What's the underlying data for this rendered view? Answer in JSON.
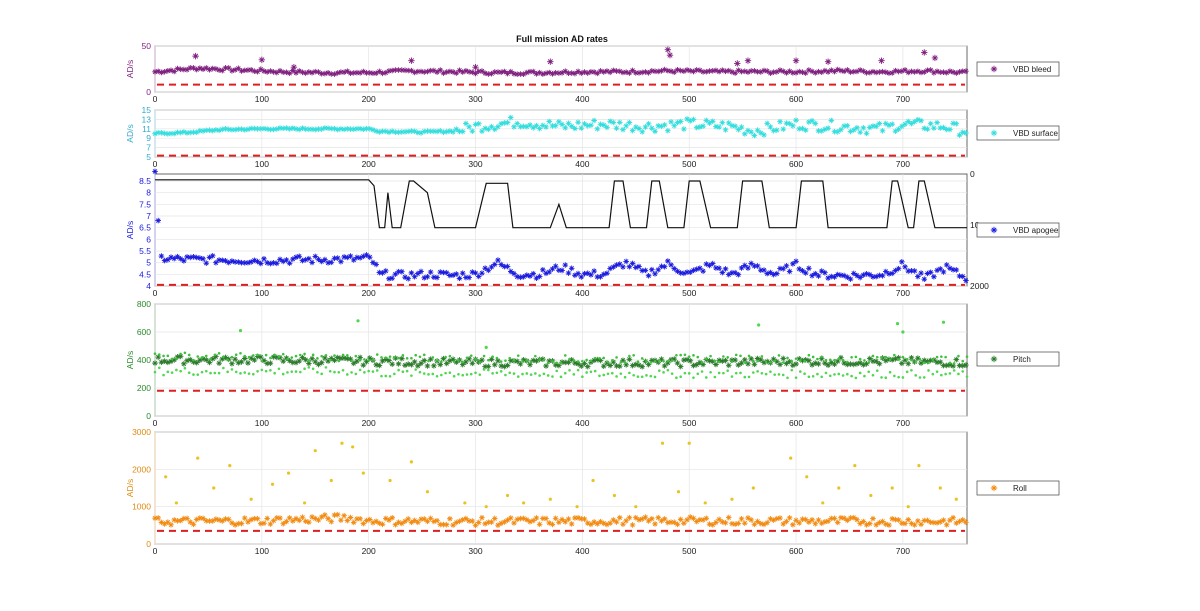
{
  "figure": {
    "title": "Full mission AD rates"
  },
  "chart_data": [
    {
      "type": "scatter",
      "title": "Full mission AD rates",
      "xlabel": "",
      "ylabel": "AD/s",
      "xlim": [
        0,
        760
      ],
      "ylim": [
        0,
        50
      ],
      "yticks": [
        0,
        50
      ],
      "xticks": [
        0,
        100,
        200,
        300,
        400,
        500,
        600,
        700
      ],
      "grid": true,
      "legend": {
        "position": "right",
        "entries": [
          "VBD bleed"
        ]
      },
      "threshold": 8,
      "series": [
        {
          "name": "VBD bleed",
          "color": "#7e1e7e",
          "marker": "asterisk",
          "x": [
            0,
            40,
            80,
            120,
            160,
            200,
            240,
            280,
            320,
            360,
            400,
            440,
            480,
            520,
            560,
            600,
            640,
            680,
            720,
            760
          ],
          "values": [
            22,
            26,
            24,
            22,
            21,
            21,
            23,
            22,
            21,
            21,
            22,
            22,
            23,
            22,
            22,
            22,
            23,
            22,
            23,
            21
          ],
          "outliers": [
            [
              38,
              39
            ],
            [
              100,
              35
            ],
            [
              130,
              27
            ],
            [
              240,
              34
            ],
            [
              300,
              27
            ],
            [
              370,
              33
            ],
            [
              480,
              46
            ],
            [
              482,
              40
            ],
            [
              545,
              31
            ],
            [
              555,
              34
            ],
            [
              600,
              34
            ],
            [
              630,
              33
            ],
            [
              680,
              34
            ],
            [
              720,
              43
            ],
            [
              730,
              37
            ]
          ]
        }
      ]
    },
    {
      "type": "scatter",
      "ylabel": "AD/s",
      "xlim": [
        0,
        760
      ],
      "ylim": [
        5,
        15
      ],
      "yticks": [
        5,
        7,
        9,
        11,
        13,
        15
      ],
      "xticks": [
        0,
        100,
        200,
        300,
        400,
        500,
        600,
        700
      ],
      "grid": true,
      "legend": {
        "position": "right",
        "entries": [
          "VBD surface"
        ]
      },
      "threshold": 5.3,
      "series": [
        {
          "name": "VBD surface",
          "color": "#33dddd",
          "marker": "asterisk",
          "x": [
            0,
            30,
            60,
            100,
            150,
            200,
            210,
            250,
            280,
            300,
            340,
            380,
            420,
            460,
            500,
            540,
            560,
            600,
            640,
            680,
            700,
            740,
            760
          ],
          "values": [
            10,
            10.2,
            10.8,
            11,
            11,
            11,
            10.5,
            10.3,
            10.5,
            11.5,
            12.5,
            11.5,
            12,
            11.5,
            12,
            11.5,
            10.5,
            12,
            11.5,
            11,
            12,
            11.5,
            10.5
          ],
          "jitter": 1.2,
          "jitter_from": 280
        }
      ]
    },
    {
      "type": "line",
      "ylabel": "AD/s",
      "xlim": [
        0,
        760
      ],
      "ylim": [
        4,
        8.8
      ],
      "yticks": [
        4,
        4.5,
        5,
        5.5,
        6,
        6.5,
        7,
        7.5,
        8,
        8.5
      ],
      "y2ticks": [
        "0",
        "10",
        "2000"
      ],
      "xticks": [
        0,
        100,
        200,
        300,
        400,
        500,
        600,
        700
      ],
      "grid": true,
      "legend": {
        "position": "right",
        "entries": [
          "VBD apogee"
        ]
      },
      "threshold": 4.05,
      "series": [
        {
          "name": "",
          "color": "#111111",
          "marker": "line",
          "x": [
            0,
            200,
            205,
            210,
            215,
            218,
            222,
            230,
            238,
            242,
            255,
            262,
            300,
            310,
            322,
            330,
            335,
            370,
            378,
            385,
            392,
            400,
            425,
            430,
            438,
            445,
            460,
            465,
            472,
            480,
            495,
            500,
            510,
            520,
            545,
            550,
            568,
            575,
            600,
            605,
            625,
            630,
            680,
            685,
            690,
            695,
            705,
            710,
            715,
            720,
            730,
            740,
            760
          ],
          "values": [
            8.55,
            8.55,
            8.3,
            6.5,
            6.5,
            8.0,
            6.5,
            6.5,
            8.5,
            8.5,
            8.0,
            6.5,
            6.5,
            8.4,
            8.4,
            8.4,
            6.5,
            6.5,
            7.5,
            6.5,
            6.5,
            6.5,
            6.5,
            8.5,
            8.5,
            6.5,
            6.5,
            8.5,
            8.5,
            6.5,
            6.5,
            8.5,
            8.5,
            6.5,
            6.5,
            8.5,
            8.5,
            6.5,
            6.5,
            8.5,
            8.5,
            6.5,
            6.5,
            6.5,
            8.5,
            8.5,
            6.5,
            6.5,
            8.5,
            8.5,
            6.5,
            6.5,
            6.5
          ]
        },
        {
          "name": "VBD apogee",
          "color": "#1a1adf",
          "marker": "asterisk",
          "x": [
            0,
            5,
            20,
            100,
            180,
            200,
            205,
            210,
            230,
            260,
            280,
            300,
            320,
            340,
            360,
            380,
            400,
            420,
            440,
            460,
            480,
            500,
            520,
            540,
            560,
            580,
            600,
            620,
            640,
            660,
            680,
            700,
            720,
            740,
            760
          ],
          "values": [
            8.8,
            5.2,
            5.15,
            5.1,
            5.15,
            5.2,
            5.0,
            4.5,
            4.45,
            4.5,
            4.45,
            4.5,
            5.0,
            4.5,
            4.5,
            4.8,
            4.5,
            4.5,
            5.0,
            4.5,
            4.95,
            4.5,
            4.9,
            4.5,
            4.9,
            4.5,
            4.9,
            4.5,
            4.45,
            4.45,
            4.5,
            4.9,
            4.3,
            4.8,
            4.3
          ]
        }
      ]
    },
    {
      "type": "scatter",
      "ylabel": "AD/s",
      "xlim": [
        0,
        760
      ],
      "ylim": [
        0,
        800
      ],
      "yticks": [
        0,
        200,
        400,
        600,
        800
      ],
      "xticks": [
        0,
        100,
        200,
        300,
        400,
        500,
        600,
        700
      ],
      "grid": true,
      "legend": {
        "position": "right",
        "entries": [
          "Pitch"
        ]
      },
      "threshold": 180,
      "series": [
        {
          "name": "Pitch",
          "color": "#2a7a2a",
          "marker": "asterisk",
          "x": [
            0,
            100,
            200,
            300,
            400,
            500,
            600,
            700,
            760
          ],
          "values": [
            400,
            400,
            390,
            380,
            380,
            380,
            390,
            390,
            380
          ]
        },
        {
          "name": "",
          "color": "#3ec03e",
          "marker": "dot",
          "x": [
            0,
            100,
            200,
            210,
            300,
            400,
            500,
            600,
            700,
            760
          ],
          "values": [
            430,
            420,
            420,
            410,
            410,
            405,
            410,
            410,
            410,
            400
          ]
        },
        {
          "name": "",
          "color": "#4fd84f",
          "marker": "dot",
          "x": [
            0,
            100,
            200,
            210,
            300,
            400,
            500,
            600,
            700,
            760
          ],
          "values": [
            320,
            320,
            320,
            305,
            305,
            300,
            300,
            300,
            300,
            300
          ],
          "outliers": [
            [
              80,
              610
            ],
            [
              190,
              680
            ],
            [
              310,
              490
            ],
            [
              565,
              650
            ],
            [
              695,
              660
            ],
            [
              700,
              600
            ],
            [
              738,
              670
            ]
          ]
        }
      ]
    },
    {
      "type": "scatter",
      "ylabel": "AD/s",
      "xlim": [
        0,
        760
      ],
      "ylim": [
        0,
        3000
      ],
      "yticks": [
        0,
        1000,
        2000,
        3000
      ],
      "xticks": [
        0,
        100,
        200,
        300,
        400,
        500,
        600,
        700
      ],
      "grid": true,
      "legend": {
        "position": "right",
        "entries": [
          "Roll"
        ]
      },
      "threshold": 350,
      "series": [
        {
          "name": "Roll",
          "color": "#f28a10",
          "marker": "asterisk",
          "x": [
            0,
            100,
            180,
            200,
            300,
            400,
            500,
            600,
            700,
            760
          ],
          "values": [
            600,
            620,
            700,
            620,
            600,
            610,
            620,
            610,
            610,
            600
          ]
        },
        {
          "name": "",
          "color": "#e8c420",
          "marker": "dot",
          "outliers": [
            [
              10,
              1800
            ],
            [
              20,
              1100
            ],
            [
              40,
              2300
            ],
            [
              55,
              1500
            ],
            [
              70,
              2100
            ],
            [
              90,
              1200
            ],
            [
              110,
              1600
            ],
            [
              125,
              1900
            ],
            [
              140,
              1100
            ],
            [
              150,
              2500
            ],
            [
              165,
              1700
            ],
            [
              175,
              2700
            ],
            [
              185,
              2600
            ],
            [
              195,
              1900
            ],
            [
              220,
              1700
            ],
            [
              240,
              2200
            ],
            [
              255,
              1400
            ],
            [
              290,
              1100
            ],
            [
              310,
              1000
            ],
            [
              330,
              1300
            ],
            [
              345,
              1100
            ],
            [
              370,
              1200
            ],
            [
              395,
              1000
            ],
            [
              410,
              1700
            ],
            [
              430,
              1300
            ],
            [
              450,
              1000
            ],
            [
              475,
              2700
            ],
            [
              490,
              1400
            ],
            [
              500,
              2700
            ],
            [
              515,
              1100
            ],
            [
              540,
              1200
            ],
            [
              560,
              1500
            ],
            [
              595,
              2300
            ],
            [
              610,
              1800
            ],
            [
              625,
              1100
            ],
            [
              640,
              1500
            ],
            [
              655,
              2100
            ],
            [
              670,
              1300
            ],
            [
              690,
              1500
            ],
            [
              705,
              1000
            ],
            [
              715,
              2100
            ],
            [
              735,
              1500
            ],
            [
              750,
              1200
            ]
          ]
        }
      ]
    }
  ]
}
